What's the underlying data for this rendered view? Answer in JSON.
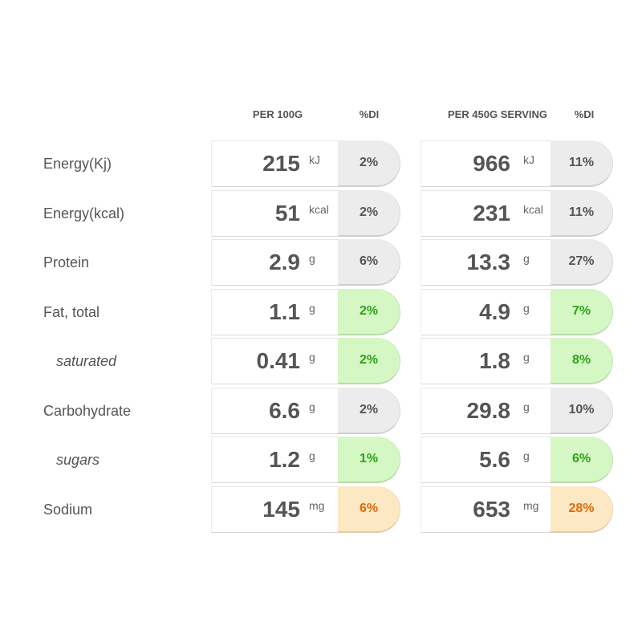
{
  "headers": {
    "per100": "PER 100G",
    "di1": "%DI",
    "perServing": "PER 450G SERVING",
    "di2": "%DI"
  },
  "rows": [
    {
      "label": "Energy(Kj)",
      "sub": false,
      "v1": "215",
      "u1": "kJ",
      "p1": "2%",
      "c1": "grey",
      "v2": "966",
      "u2": "kJ",
      "p2": "11%",
      "c2": "grey"
    },
    {
      "label": "Energy(kcal)",
      "sub": false,
      "v1": "51",
      "u1": "kcal",
      "p1": "2%",
      "c1": "grey",
      "v2": "231",
      "u2": "kcal",
      "p2": "11%",
      "c2": "grey"
    },
    {
      "label": "Protein",
      "sub": false,
      "v1": "2.9",
      "u1": "g",
      "p1": "6%",
      "c1": "grey",
      "v2": "13.3",
      "u2": "g",
      "p2": "27%",
      "c2": "grey"
    },
    {
      "label": "Fat, total",
      "sub": false,
      "v1": "1.1",
      "u1": "g",
      "p1": "2%",
      "c1": "green",
      "v2": "4.9",
      "u2": "g",
      "p2": "7%",
      "c2": "green"
    },
    {
      "label": "saturated",
      "sub": true,
      "v1": "0.41",
      "u1": "g",
      "p1": "2%",
      "c1": "green",
      "v2": "1.8",
      "u2": "g",
      "p2": "8%",
      "c2": "green"
    },
    {
      "label": "Carbohydrate",
      "sub": false,
      "v1": "6.6",
      "u1": "g",
      "p1": "2%",
      "c1": "grey",
      "v2": "29.8",
      "u2": "g",
      "p2": "10%",
      "c2": "grey"
    },
    {
      "label": "sugars",
      "sub": true,
      "v1": "1.2",
      "u1": "g",
      "p1": "1%",
      "c1": "green",
      "v2": "5.6",
      "u2": "g",
      "p2": "6%",
      "c2": "green"
    },
    {
      "label": "Sodium",
      "sub": false,
      "v1": "145",
      "u1": "mg",
      "p1": "6%",
      "c1": "orange",
      "v2": "653",
      "u2": "mg",
      "p2": "28%",
      "c2": "orange"
    }
  ],
  "colors": {
    "grey": "#ececec",
    "green": "#d4f7c4",
    "orange": "#fde8c4"
  }
}
